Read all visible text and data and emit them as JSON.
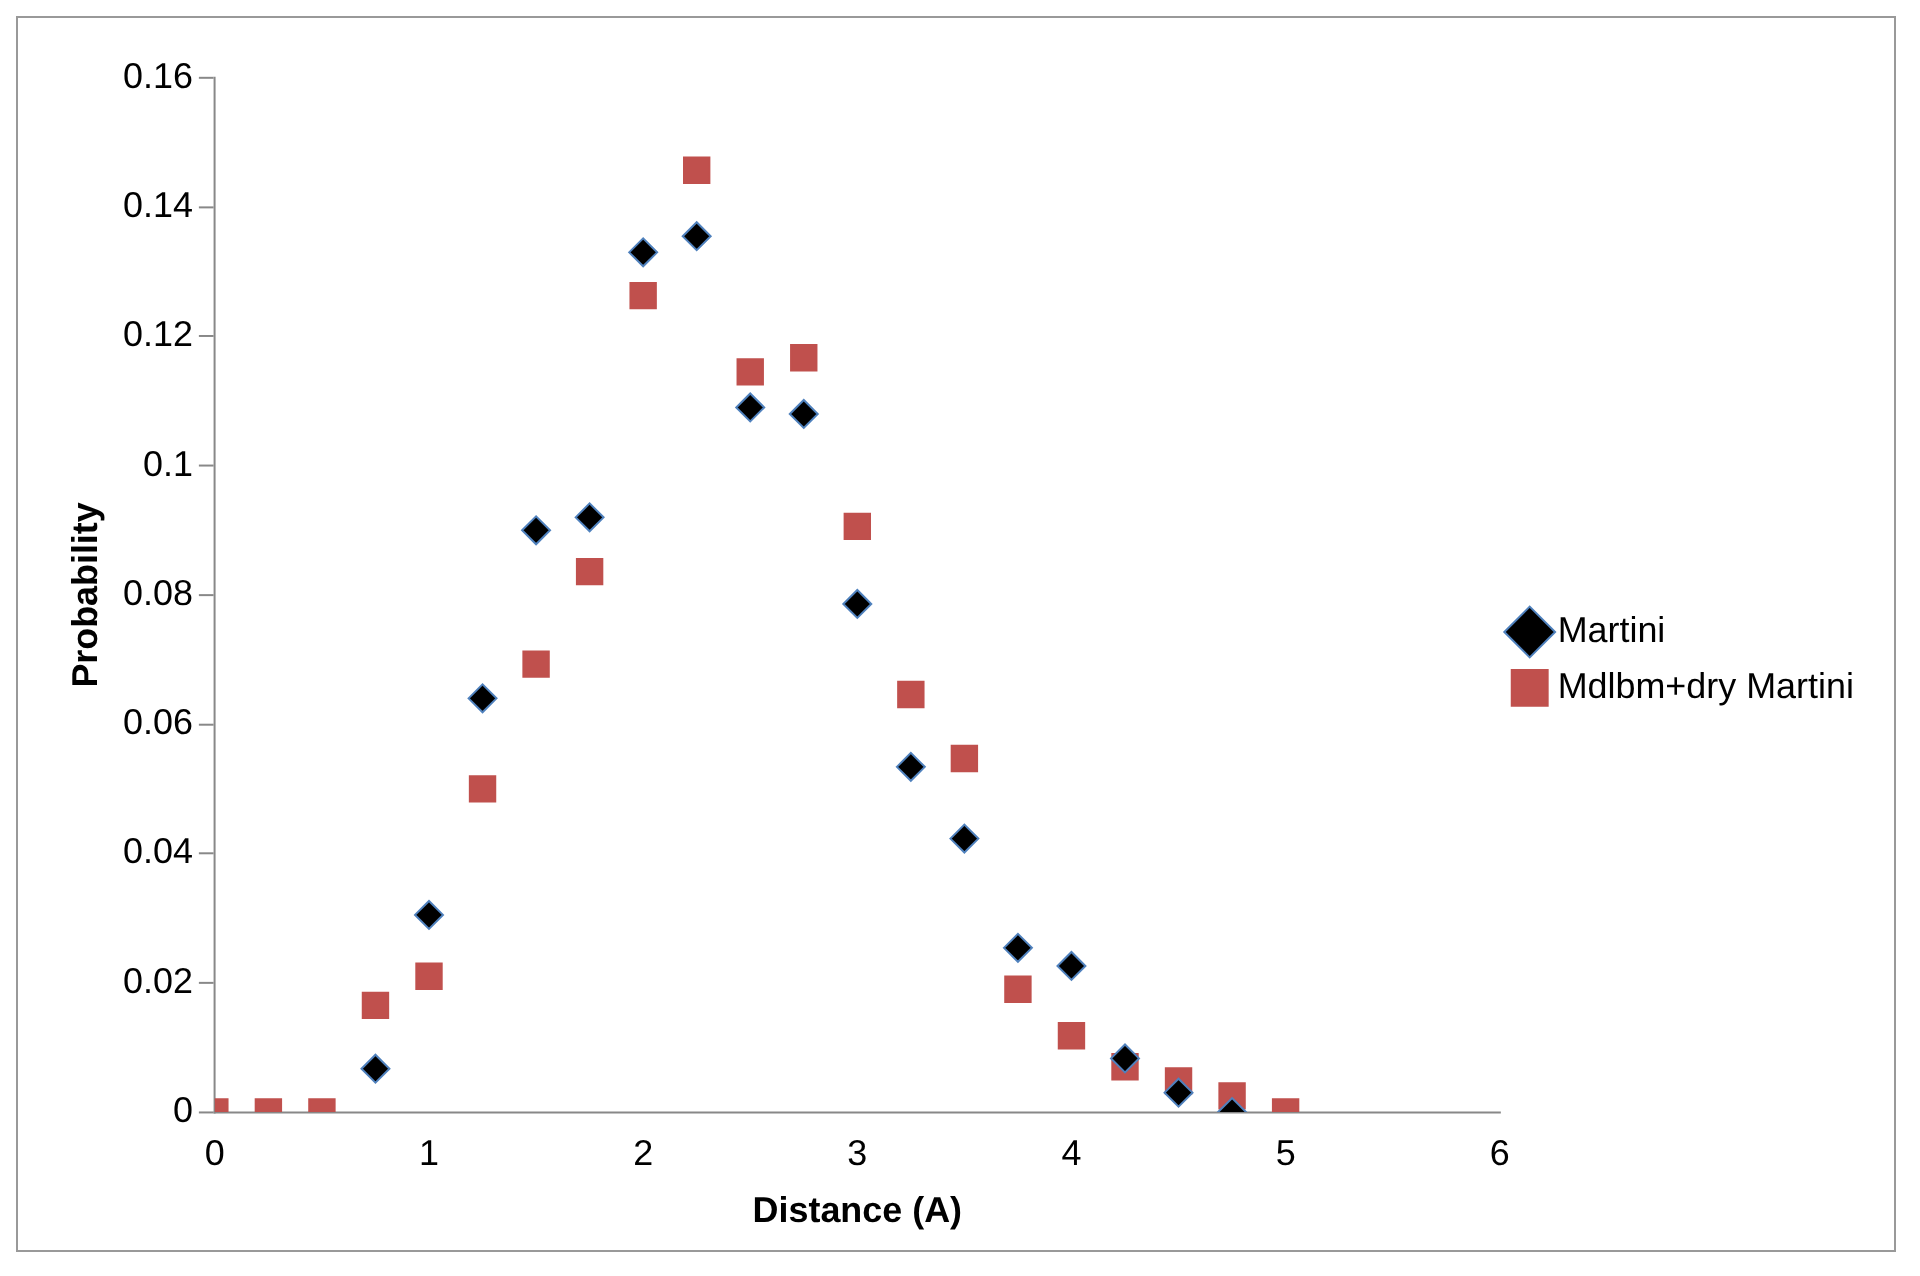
{
  "chart_data": {
    "type": "scatter",
    "xlabel": "Distance (A)",
    "ylabel": "Probability",
    "x": [
      0,
      0.25,
      0.5,
      0.75,
      1,
      1.25,
      1.5,
      1.75,
      2,
      2.25,
      2.5,
      2.75,
      3,
      3.25,
      3.5,
      3.75,
      4,
      4.25,
      4.5,
      4.75,
      5
    ],
    "series": [
      {
        "name": "Martini",
        "color": "#000000",
        "marker": "diamond",
        "values": [
          null,
          null,
          null,
          0.0067,
          0.0305,
          0.064,
          0.09,
          0.092,
          0.133,
          0.1355,
          0.109,
          0.108,
          0.0786,
          0.0534,
          0.0423,
          0.0254,
          0.0226,
          0.0083,
          0.003,
          0,
          null
        ]
      },
      {
        "name": "Mdlbm+dry Martini",
        "color": "#c0504d",
        "marker": "square",
        "values": [
          0,
          0,
          0,
          0.0165,
          0.021,
          0.05,
          0.0693,
          0.0836,
          0.1263,
          0.1457,
          0.1145,
          0.1167,
          0.0906,
          0.0646,
          0.0547,
          0.019,
          0.0118,
          0.007,
          0.0048,
          0.0025,
          0
        ]
      }
    ],
    "xlim": [
      0,
      6
    ],
    "xticks": [
      0,
      1,
      2,
      3,
      4,
      5,
      6
    ],
    "ylim": [
      0,
      0.16
    ],
    "yticks": [
      0,
      0.02,
      0.04,
      0.06,
      0.08,
      0.1,
      0.12,
      0.14,
      0.16
    ],
    "grid": false,
    "legend": "right"
  }
}
